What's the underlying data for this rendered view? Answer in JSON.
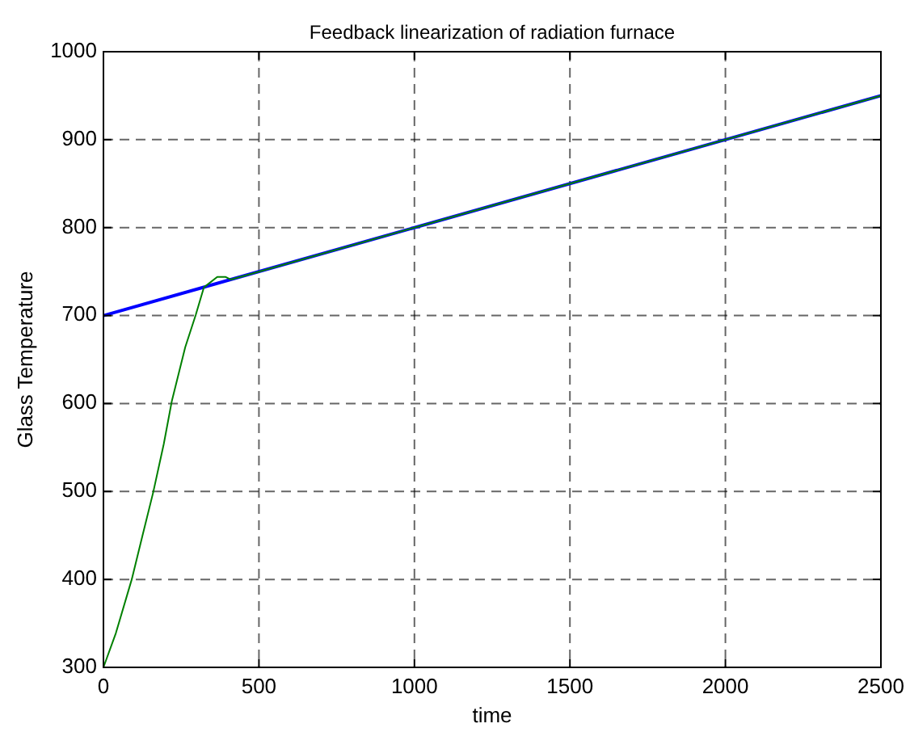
{
  "chart_data": {
    "type": "line",
    "title": "Feedback linearization of radiation furnace",
    "xlabel": "time",
    "ylabel": "Glass Temperature",
    "xlim": [
      0,
      2500
    ],
    "ylim": [
      300,
      1000
    ],
    "xticks": [
      0,
      500,
      1000,
      1500,
      2000,
      2500
    ],
    "yticks": [
      300,
      400,
      500,
      600,
      700,
      800,
      900,
      1000
    ],
    "grid": true,
    "line_style": "solid",
    "series": [
      {
        "color": "#0000ff",
        "x": [
          0,
          2500
        ],
        "values": [
          700,
          950
        ]
      },
      {
        "color": "#008000",
        "x": [
          0,
          40,
          91,
          125,
          160,
          194,
          220,
          263,
          297,
          323,
          366,
          392,
          409,
          452,
          1000,
          2500
        ],
        "values": [
          300,
          339,
          400,
          449,
          499,
          554,
          603,
          664,
          701,
          732,
          744,
          744,
          741,
          745,
          800,
          950
        ]
      }
    ]
  }
}
